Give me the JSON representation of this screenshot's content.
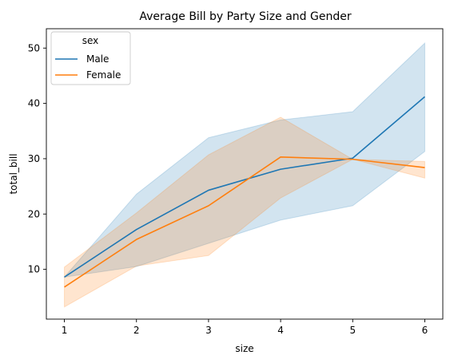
{
  "chart_data": {
    "type": "line",
    "title": "Average Bill by Party Size and Gender",
    "xlabel": "size",
    "ylabel": "total_bill",
    "x": [
      1,
      2,
      3,
      4,
      5,
      6
    ],
    "xlim": [
      0.75,
      6.25
    ],
    "ylim": [
      1,
      53.5
    ],
    "xticks": [
      1,
      2,
      3,
      4,
      5,
      6
    ],
    "yticks": [
      10,
      20,
      30,
      40,
      50
    ],
    "grid": false,
    "legend": {
      "title": "sex",
      "placement": "top-left"
    },
    "series": [
      {
        "name": "Male",
        "color": "#1f77b4",
        "x": [
          1,
          2,
          3,
          4,
          5,
          6
        ],
        "values": [
          8.6,
          17.2,
          24.3,
          28.1,
          30.1,
          41.2
        ],
        "ci_lower": [
          8.6,
          10.5,
          14.7,
          18.9,
          21.5,
          31.3
        ],
        "ci_upper": [
          8.6,
          23.6,
          33.8,
          37.0,
          38.5,
          50.9
        ]
      },
      {
        "name": "Female",
        "color": "#ff7f0e",
        "x": [
          1,
          2,
          3,
          4,
          5,
          6
        ],
        "values": [
          6.8,
          15.4,
          21.5,
          30.3,
          29.9,
          28.4
        ],
        "ci_lower": [
          3.2,
          10.6,
          12.5,
          22.9,
          29.9,
          26.5
        ],
        "ci_upper": [
          10.4,
          20.2,
          30.7,
          37.5,
          29.9,
          29.5
        ]
      }
    ]
  }
}
